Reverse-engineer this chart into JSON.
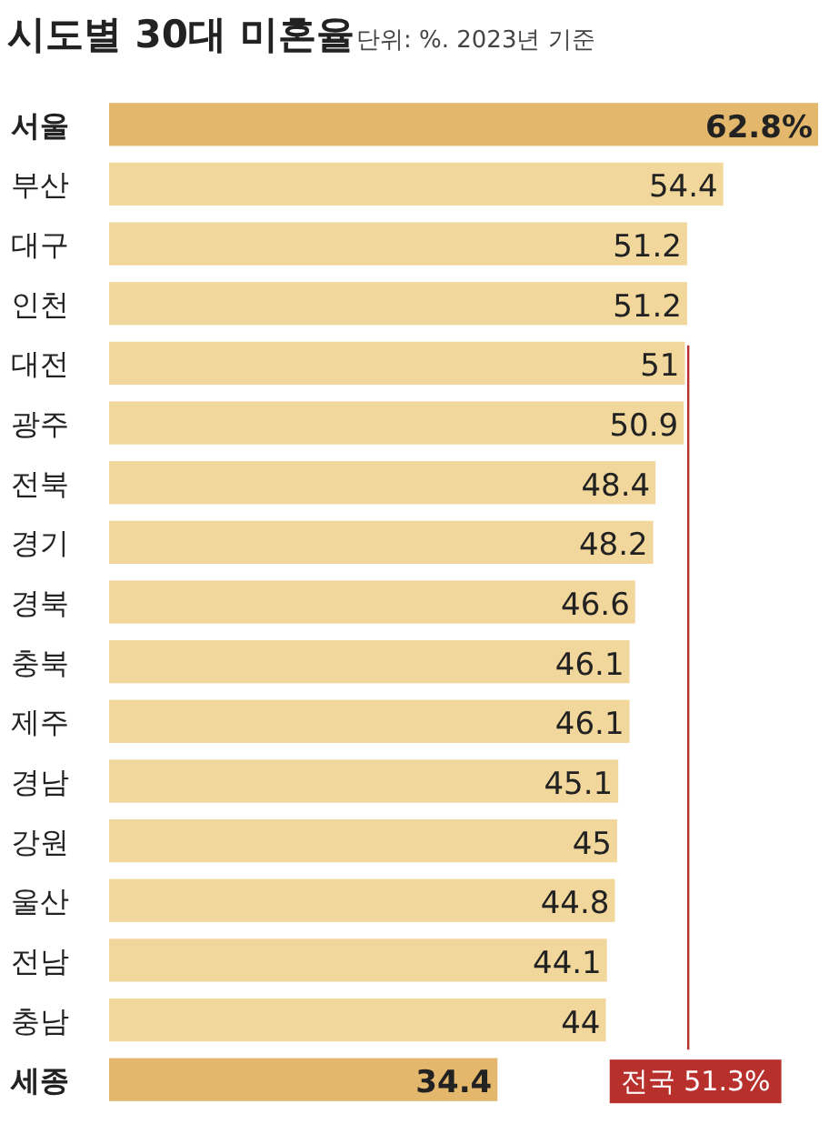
{
  "chart_data": {
    "type": "bar",
    "orientation": "horizontal",
    "title": "시도별 30대 미혼율",
    "subtitle": "단위: %. 2023년 기준",
    "categories": [
      "서울",
      "부산",
      "대구",
      "인천",
      "대전",
      "광주",
      "전북",
      "경기",
      "경북",
      "충북",
      "제주",
      "경남",
      "강원",
      "울산",
      "전남",
      "충남",
      "세종"
    ],
    "values": [
      62.8,
      54.4,
      51.2,
      51.2,
      51,
      50.9,
      48.4,
      48.2,
      46.6,
      46.1,
      46.1,
      45.1,
      45,
      44.8,
      44.1,
      44,
      34.4
    ],
    "colors": [
      "#e3b86c",
      "#f1d79c",
      "#f1d79c",
      "#f1d79c",
      "#f1d79c",
      "#f1d79c",
      "#f1d79c",
      "#f1d79c",
      "#f1d79c",
      "#f1d79c",
      "#f1d79c",
      "#f1d79c",
      "#f1d79c",
      "#f1d79c",
      "#f1d79c",
      "#f1d79c",
      "#e3b86c"
    ],
    "value_labels": [
      "62.8%",
      "54.4",
      "51.2",
      "51.2",
      "51",
      "50.9",
      "48.4",
      "48.2",
      "46.6",
      "46.1",
      "46.1",
      "45.1",
      "45",
      "44.8",
      "44.1",
      "44",
      "34.4"
    ],
    "tick_labels": "y",
    "ref_lines": [
      {
        "axis": "x",
        "value": 51.3,
        "label": "전국 51.3%",
        "color": "#b8302c"
      }
    ]
  }
}
